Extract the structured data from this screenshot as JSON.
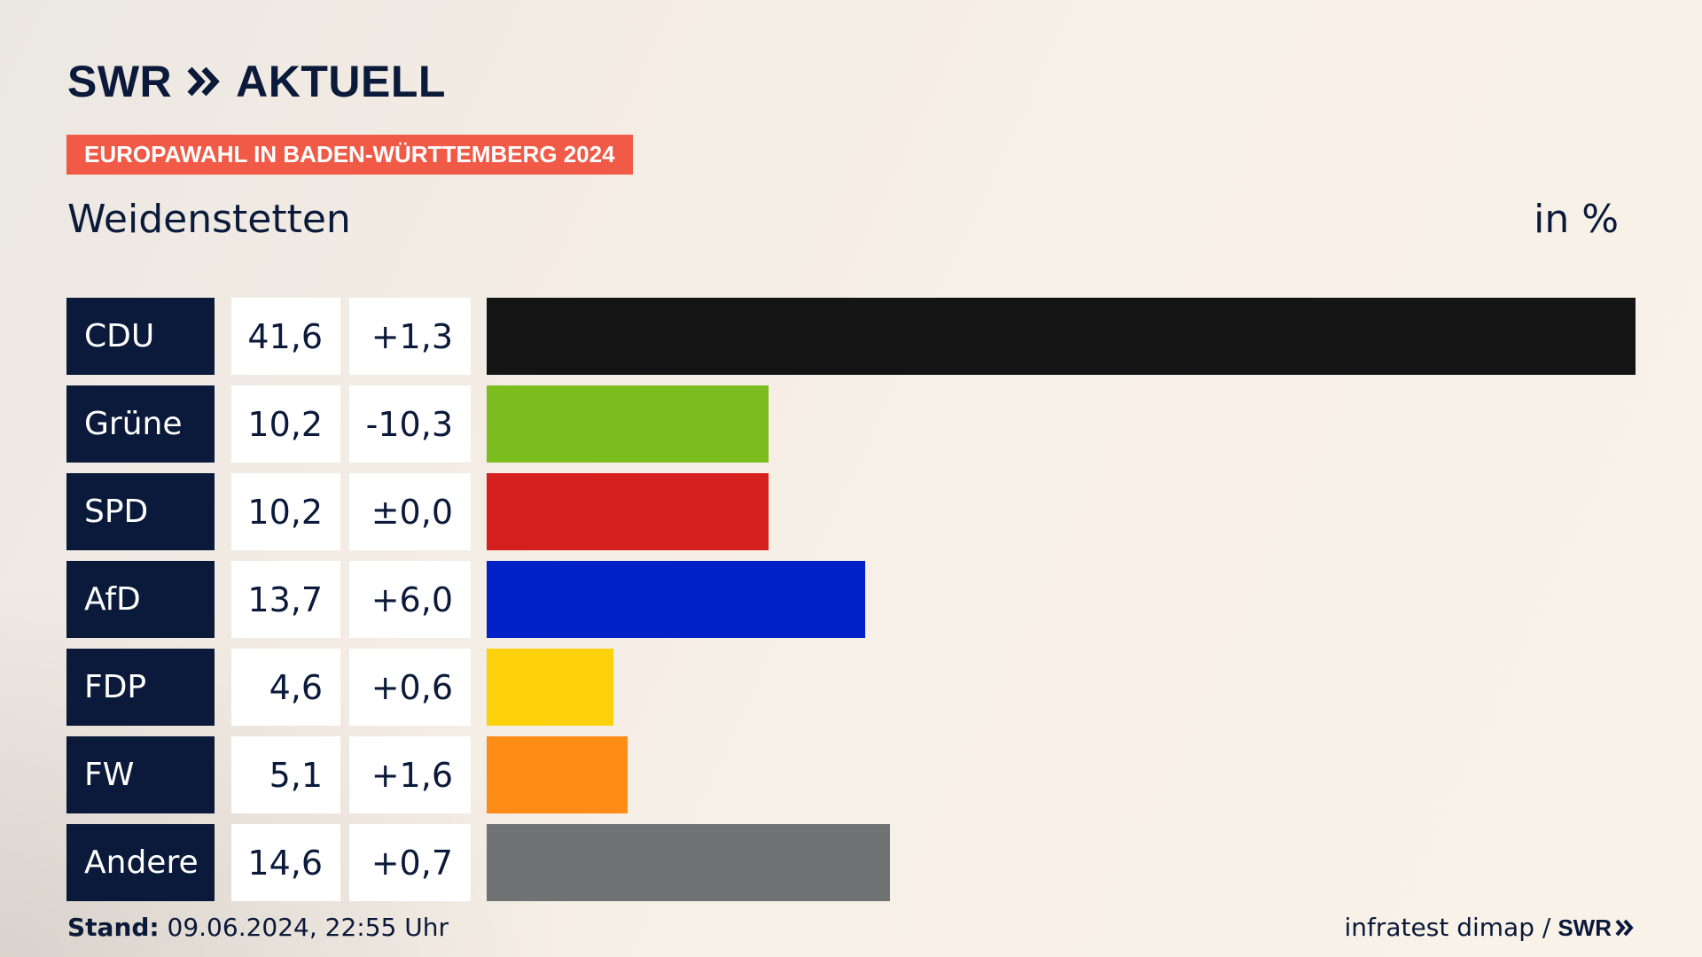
{
  "brand": {
    "logo_main": "SWR",
    "logo_sub": "AKTUELL",
    "footer_logo": "SWR"
  },
  "header": {
    "badge": "EUROPAWAHL IN BADEN-WÜRTTEMBERG 2024",
    "place": "Weidenstetten",
    "unit": "in %"
  },
  "footer": {
    "stand_label": "Stand:",
    "stand_value": "09.06.2024, 22:55 Uhr",
    "source": "infratest dimap /"
  },
  "chart_data": {
    "type": "bar",
    "orientation": "horizontal",
    "unit": "%",
    "categories": [
      "CDU",
      "Grüne",
      "SPD",
      "AfD",
      "FDP",
      "FW",
      "Andere"
    ],
    "values": [
      41.6,
      10.2,
      10.2,
      13.7,
      4.6,
      5.1,
      14.6
    ],
    "value_labels": [
      "41,6",
      "10,2",
      "10,2",
      "13,7",
      "4,6",
      "5,1",
      "14,6"
    ],
    "change_labels": [
      "+1,3",
      "-10,3",
      "±0,0",
      "+6,0",
      "+0,6",
      "+1,6",
      "+0,7"
    ],
    "changes": [
      1.3,
      -10.3,
      0.0,
      6.0,
      0.6,
      1.6,
      0.7
    ],
    "colors": [
      "#141414",
      "#7bbc1e",
      "#d61f1f",
      "#0021c8",
      "#fdd00c",
      "#fd8c17",
      "#717274"
    ],
    "xlim": [
      0,
      41.6
    ]
  }
}
